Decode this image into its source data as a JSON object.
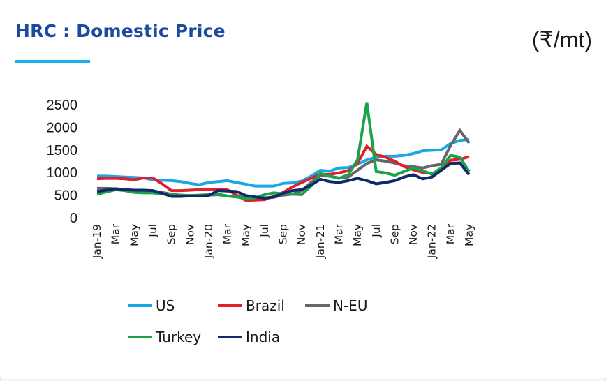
{
  "header": {
    "title": "HRC : Domestic Price",
    "unit": "(₹/mt)",
    "accent_color": "#19aeea",
    "title_color": "#1c4aa0"
  },
  "chart_data": {
    "type": "line",
    "title": "HRC : Domestic Price",
    "ylabel": "(₹/mt)",
    "xlabel": "",
    "ylim": [
      0,
      2500
    ],
    "yticks": [
      0,
      500,
      1000,
      1500,
      2000,
      2500
    ],
    "grid": false,
    "legend_position": "bottom",
    "x": [
      "Jan-19",
      "Feb-19",
      "Mar-19",
      "Apr-19",
      "May-19",
      "Jun-19",
      "Jul-19",
      "Aug-19",
      "Sep-19",
      "Oct-19",
      "Nov-19",
      "Dec-19",
      "Jan-20",
      "Feb-20",
      "Mar-20",
      "Apr-20",
      "May-20",
      "Jun-20",
      "Jul-20",
      "Aug-20",
      "Sep-20",
      "Oct-20",
      "Nov-20",
      "Dec-20",
      "Jan-21",
      "Feb-21",
      "Mar-21",
      "Apr-21",
      "May-21",
      "Jun-21",
      "Jul-21",
      "Aug-21",
      "Sep-21",
      "Oct-21",
      "Nov-21",
      "Dec-21",
      "Jan-22",
      "Feb-22",
      "Mar-22",
      "Apr-22",
      "May-22"
    ],
    "xtick_labels": [
      "Jan-19",
      "",
      "Mar",
      "",
      "May",
      "",
      "Jul",
      "",
      "Sep",
      "",
      "Nov",
      "",
      "Jan-20",
      "",
      "Mar",
      "",
      "May",
      "",
      "Jul",
      "",
      "Sep",
      "",
      "Nov",
      "",
      "Jan-21",
      "",
      "Mar",
      "",
      "May",
      "",
      "Jul",
      "",
      "Sep",
      "",
      "Nov",
      "",
      "Jan-22",
      "",
      "Mar",
      "",
      "May"
    ],
    "series": [
      {
        "name": "US",
        "color": "#1aa7e6",
        "values": [
          920,
          920,
          910,
          900,
          890,
          880,
          840,
          830,
          820,
          800,
          760,
          730,
          780,
          800,
          820,
          780,
          740,
          700,
          700,
          700,
          760,
          770,
          810,
          920,
          1050,
          1030,
          1100,
          1110,
          1180,
          1280,
          1340,
          1360,
          1360,
          1380,
          1420,
          1480,
          1490,
          1500,
          1640,
          1710,
          1730
        ]
      },
      {
        "name": "Brazil",
        "color": "#e0202a",
        "values": [
          860,
          870,
          870,
          860,
          840,
          880,
          880,
          750,
          600,
          600,
          610,
          620,
          620,
          630,
          620,
          500,
          380,
          390,
          400,
          470,
          560,
          680,
          780,
          870,
          960,
          960,
          990,
          1040,
          1200,
          1580,
          1400,
          1340,
          1250,
          1130,
          1060,
          1000,
          980,
          1050,
          1270,
          1290,
          1350
        ]
      },
      {
        "name": "N-EU",
        "color": "#666666",
        "values": [
          650,
          650,
          640,
          620,
          600,
          600,
          590,
          560,
          520,
          500,
          490,
          490,
          500,
          510,
          480,
          460,
          460,
          440,
          440,
          450,
          500,
          520,
          600,
          780,
          930,
          920,
          880,
          900,
          1050,
          1200,
          1280,
          1250,
          1210,
          1150,
          1130,
          1100,
          1150,
          1180,
          1600,
          1930,
          1650
        ]
      },
      {
        "name": "Turkey",
        "color": "#1aa34a",
        "values": [
          520,
          570,
          620,
          600,
          560,
          550,
          550,
          530,
          500,
          500,
          490,
          500,
          510,
          520,
          480,
          460,
          420,
          440,
          510,
          550,
          530,
          520,
          510,
          700,
          980,
          920,
          870,
          950,
          1280,
          2550,
          1020,
          990,
          940,
          1020,
          1100,
          1040,
          960,
          1100,
          1380,
          1340,
          1020
        ]
      },
      {
        "name": "India",
        "color": "#0f2a6b",
        "values": [
          580,
          610,
          640,
          620,
          610,
          610,
          600,
          540,
          470,
          470,
          480,
          480,
          490,
          600,
          590,
          580,
          490,
          460,
          430,
          460,
          540,
          600,
          620,
          720,
          850,
          800,
          780,
          820,
          870,
          820,
          750,
          780,
          820,
          900,
          950,
          860,
          900,
          1050,
          1200,
          1210,
          950
        ]
      }
    ]
  },
  "legend": [
    {
      "label": "US",
      "color": "#1aa7e6"
    },
    {
      "label": "Brazil",
      "color": "#e0202a"
    },
    {
      "label": "N-EU",
      "color": "#666666"
    },
    {
      "label": "Turkey",
      "color": "#1aa34a"
    },
    {
      "label": "India",
      "color": "#0f2a6b"
    }
  ]
}
